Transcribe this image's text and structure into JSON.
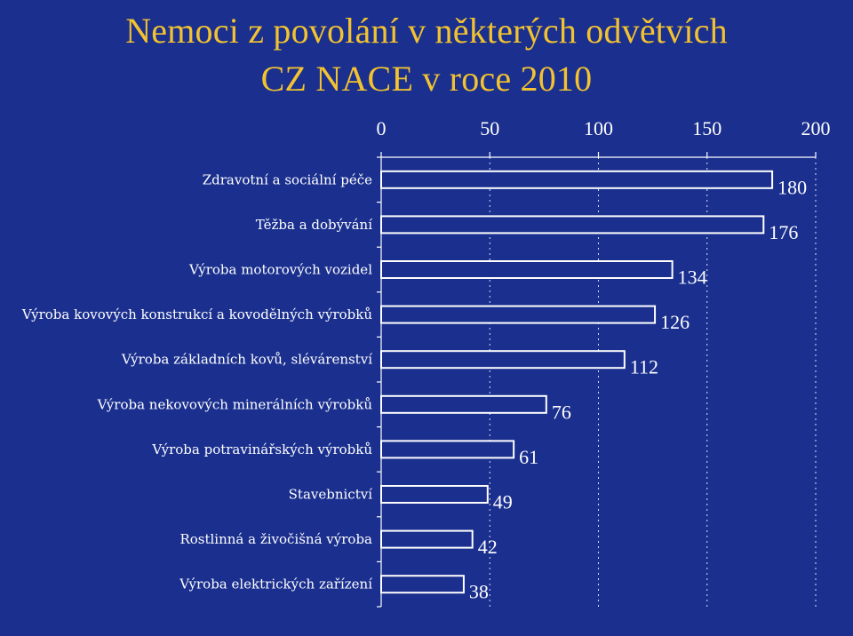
{
  "title_line1": "Nemoci z povolání v některých odvětvích",
  "title_line2": "CZ NACE v roce 2010",
  "colors": {
    "background": "#1a2f8e",
    "title": "#f2c230",
    "bar_fill": "#1a2f8e",
    "bar_stroke": "#ffffff",
    "text": "#ffffff"
  },
  "chart_data": {
    "type": "bar",
    "orientation": "horizontal",
    "categories": [
      "Zdravotní a sociální péče",
      "Těžba a dobývání",
      "Výroba motorových vozidel",
      "Výroba kovových konstrukcí a kovodělných výrobků",
      "Výroba základních kovů, slévárenství",
      "Výroba nekovových minerálních výrobků",
      "Výroba potravinářských  výrobků",
      "Stavebnictví",
      "Rostlinná a živočišná výroba",
      "Výroba elektrických zařízení"
    ],
    "values": [
      180,
      176,
      134,
      126,
      112,
      76,
      61,
      49,
      42,
      38
    ],
    "data_labels": [
      "180",
      "176",
      "134",
      "126",
      "112",
      "76",
      "61",
      "49",
      "42",
      "38"
    ],
    "xlim": [
      0,
      200
    ],
    "x_ticks": [
      0,
      50,
      100,
      150,
      200
    ],
    "x_tick_labels": [
      "0",
      "50",
      "100",
      "150",
      "200"
    ],
    "axis_position": "top",
    "grid": "vertical dashed",
    "legend": "none"
  }
}
